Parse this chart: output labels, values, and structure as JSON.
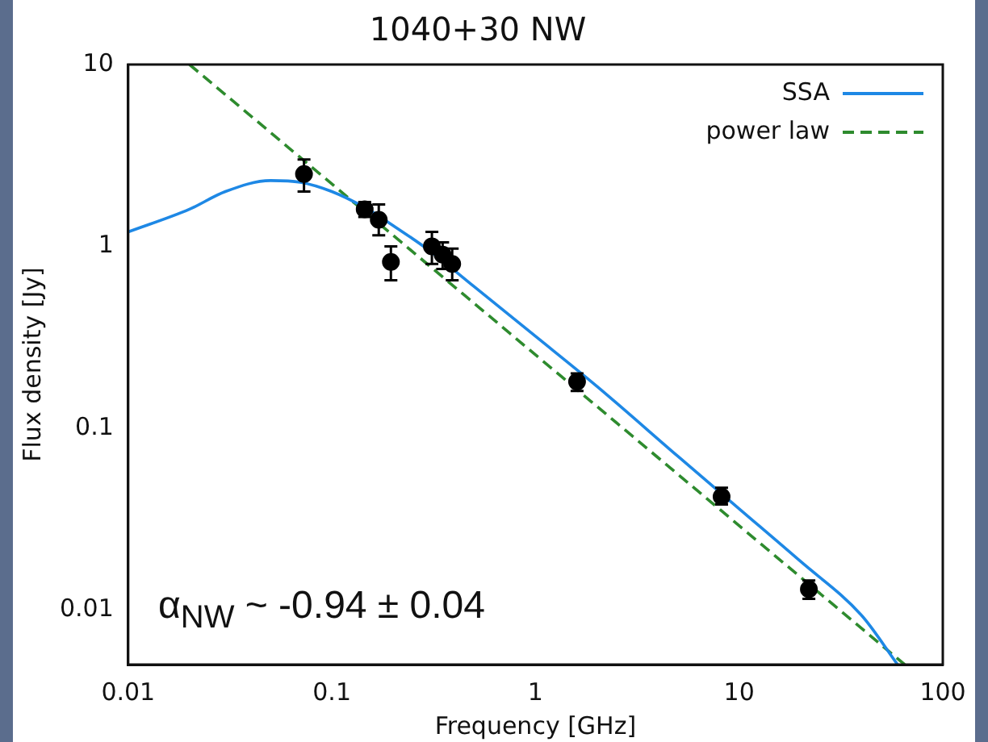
{
  "chart_data": {
    "type": "scatter",
    "title": "1040+30 NW",
    "xlabel": "Frequency [GHz]",
    "ylabel": "Flux density [Jy]",
    "log": "xy",
    "xlim": [
      0.01,
      100
    ],
    "ylim": [
      0.005,
      10
    ],
    "xticks": [
      0.01,
      0.1,
      1,
      10,
      100
    ],
    "yticks": [
      0.01,
      0.1,
      1,
      10
    ],
    "grid": false,
    "legend": "top right",
    "annotations": [
      "α$_{NW}$ ~ -0.94 ± 0.04"
    ],
    "series": [
      {
        "color": "#000000",
        "marker": "circle",
        "x": [
          0.073,
          0.145,
          0.17,
          0.195,
          0.31,
          0.35,
          0.39,
          1.6,
          8.2,
          22
        ],
        "values": [
          2.5,
          1.6,
          1.4,
          0.82,
          1.0,
          0.9,
          0.8,
          0.18,
          0.042,
          0.013
        ],
        "errors": [
          [
            2.0,
            3.0
          ],
          [
            1.45,
            1.75
          ],
          [
            1.15,
            1.7
          ],
          [
            0.65,
            1.0
          ],
          [
            0.8,
            1.2
          ],
          [
            0.75,
            1.05
          ],
          [
            0.65,
            0.97
          ],
          [
            0.16,
            0.2
          ],
          [
            0.038,
            0.047
          ],
          [
            0.0115,
            0.0145
          ]
        ]
      },
      {
        "type": "line",
        "name": "SSA",
        "color": "#1e88e5",
        "line_style": "solid",
        "marker": "none",
        "x": [
          0.01,
          0.02,
          0.03,
          0.05,
          0.07,
          0.1,
          0.15,
          0.2,
          0.3,
          0.5,
          1,
          2,
          5,
          10,
          20,
          40,
          60
        ],
        "values": [
          1.2,
          1.6,
          2.0,
          2.3,
          2.25,
          2.0,
          1.6,
          1.3,
          0.95,
          0.6,
          0.32,
          0.17,
          0.07,
          0.036,
          0.0185,
          0.0093,
          0.005
        ]
      },
      {
        "type": "line",
        "name": "power law",
        "color": "#2e8b2e",
        "line_style": "dashed",
        "marker": "none",
        "x": [
          0.02,
          65
        ],
        "values": [
          10,
          0.005
        ]
      }
    ]
  }
}
